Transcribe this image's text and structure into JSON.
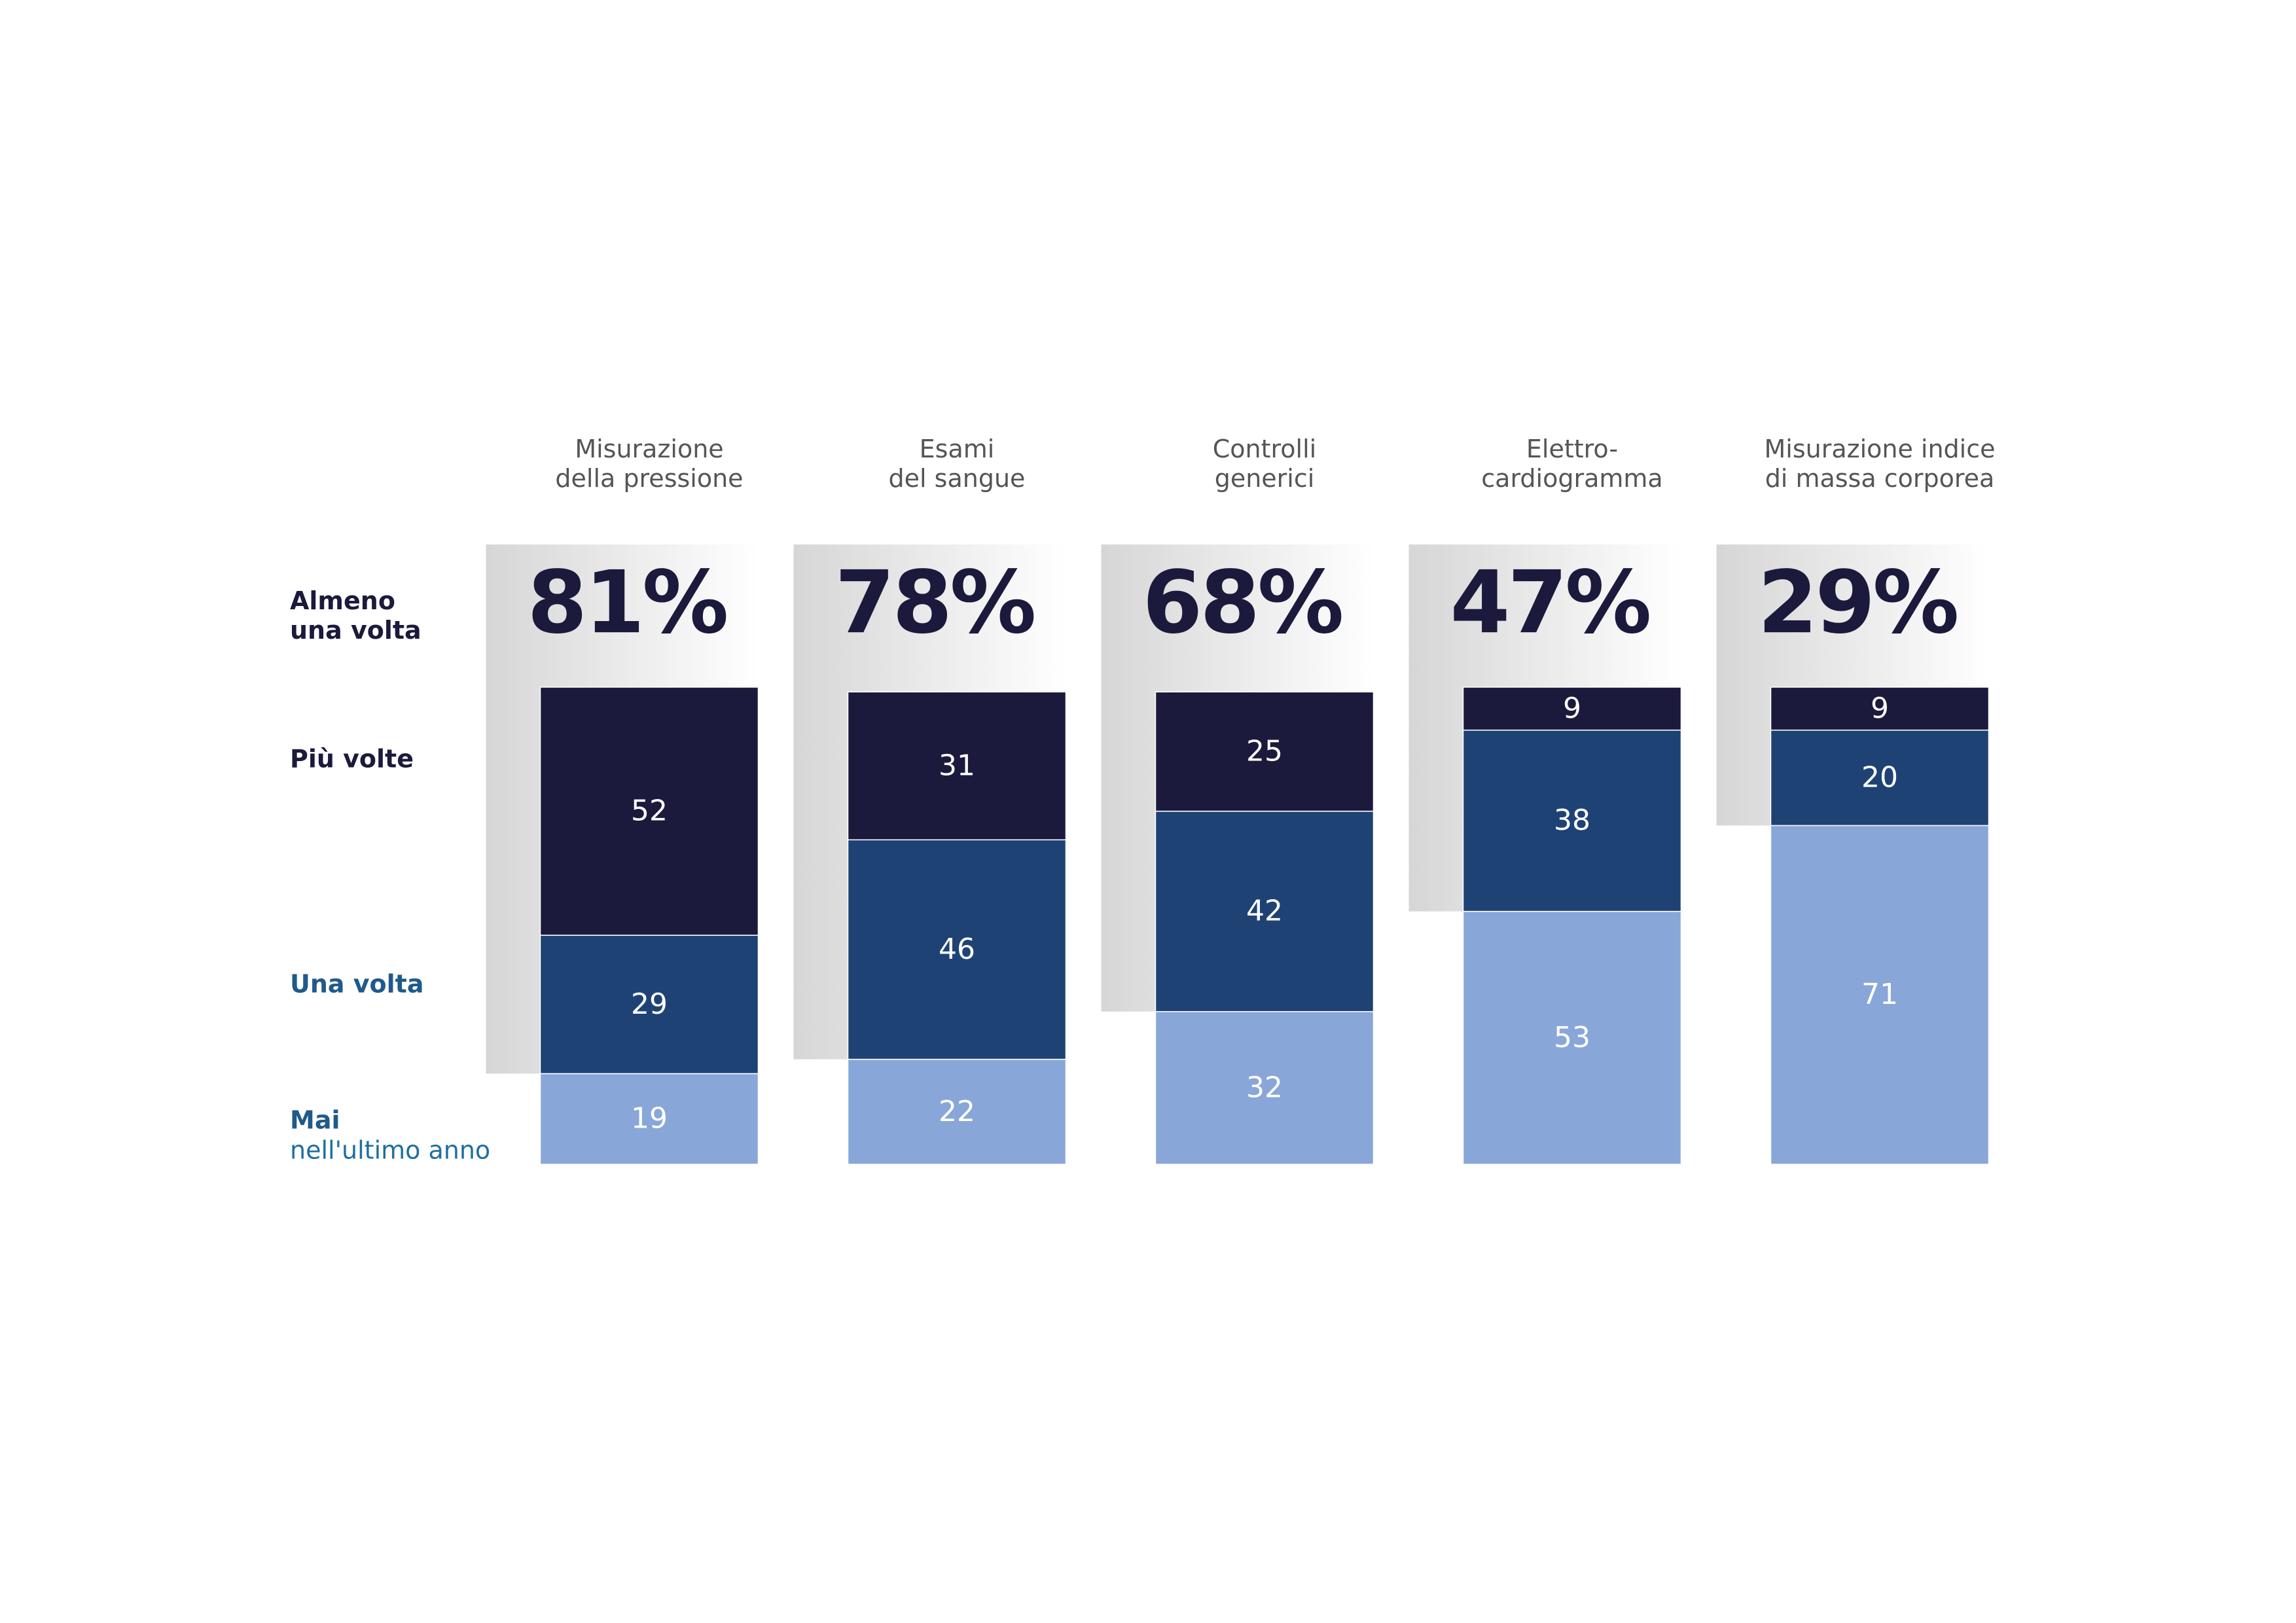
{
  "chart_data": {
    "type": "bar",
    "stacked": true,
    "categories": [
      "Misurazione\ndella pressione",
      "Esami\ndel sangue",
      "Controlli\ngenerici",
      "Elettro-\ncardiogramma",
      "Misurazione indice\ndi massa corporea"
    ],
    "series": [
      {
        "name": "Più volte",
        "color": "#1b1a3c",
        "values": [
          52,
          31,
          25,
          9,
          9
        ]
      },
      {
        "name": "Una volta",
        "color": "#1f4275",
        "values": [
          29,
          46,
          42,
          38,
          20
        ]
      },
      {
        "name": "Mai",
        "name_note": "nell'ultimo anno",
        "color": "#89a6d8",
        "values": [
          19,
          22,
          32,
          53,
          71
        ]
      }
    ],
    "totals": {
      "name": "Almeno\nuna volta",
      "values": [
        81,
        78,
        68,
        47,
        29
      ],
      "value_labels": [
        "81%",
        "78%",
        "68%",
        "47%",
        "29%"
      ]
    },
    "ylim": [
      0,
      100
    ]
  }
}
